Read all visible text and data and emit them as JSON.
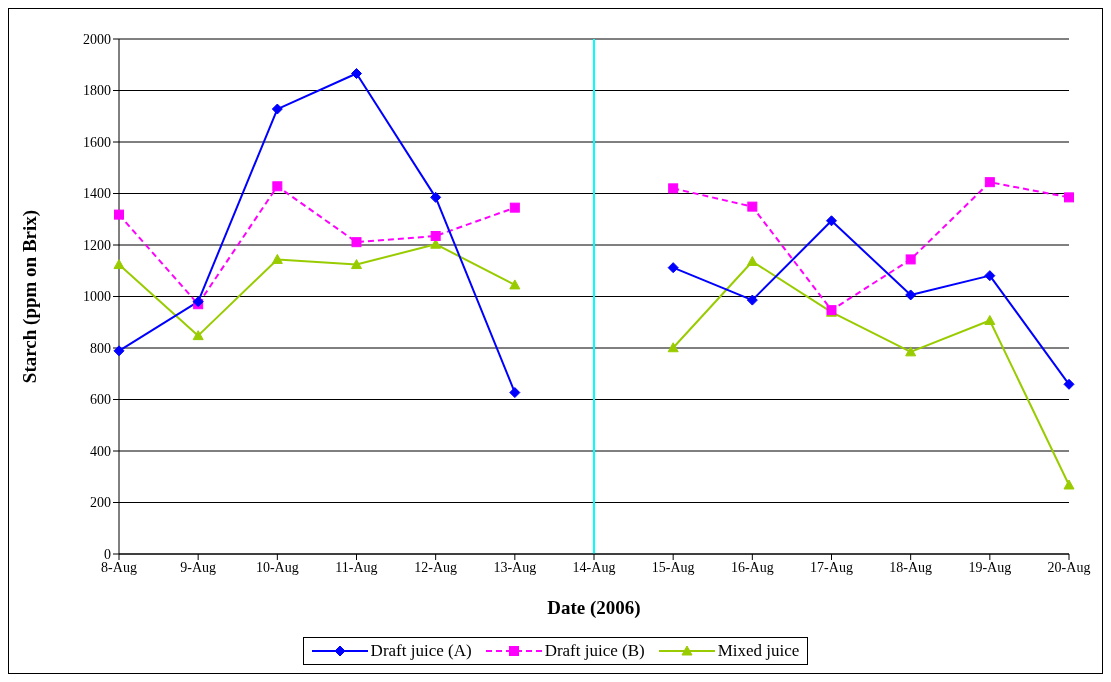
{
  "chart_data": {
    "type": "line",
    "xlabel": "Date (2006)",
    "ylabel": "Starch (ppm on Brix)",
    "categories": [
      "8-Aug",
      "9-Aug",
      "10-Aug",
      "11-Aug",
      "12-Aug",
      "13-Aug",
      "14-Aug",
      "15-Aug",
      "16-Aug",
      "17-Aug",
      "18-Aug",
      "19-Aug",
      "20-Aug"
    ],
    "series": [
      {
        "name": "Draft juice (A)",
        "color": "#0000ff",
        "marker": "diamond",
        "line_style": "solid",
        "values": [
          789,
          980,
          1728,
          1866,
          1385,
          627,
          null,
          1112,
          986,
          1294,
          1006,
          1081,
          659
        ]
      },
      {
        "name": "Draft juice (B)",
        "color": "#ff00ff",
        "marker": "square",
        "line_style": "dashed",
        "values": [
          1318,
          970,
          1428,
          1211,
          1235,
          1345,
          null,
          1420,
          1349,
          947,
          1144,
          1444,
          1385
        ]
      },
      {
        "name": "Mixed juice",
        "color": "#99cc00",
        "marker": "triangle",
        "line_style": "solid",
        "values": [
          1124,
          848,
          1144,
          1124,
          1203,
          1045,
          null,
          801,
          1136,
          939,
          785,
          907,
          268
        ]
      }
    ],
    "ylim": [
      0,
      2000
    ],
    "yticks": [
      0,
      200,
      400,
      600,
      800,
      1000,
      1200,
      1400,
      1600,
      1800,
      2000
    ],
    "grid": "y",
    "legend": "bottom",
    "ref_lines": [
      {
        "axis": "x",
        "value": "14-Aug",
        "color": "#00ffff"
      }
    ]
  }
}
